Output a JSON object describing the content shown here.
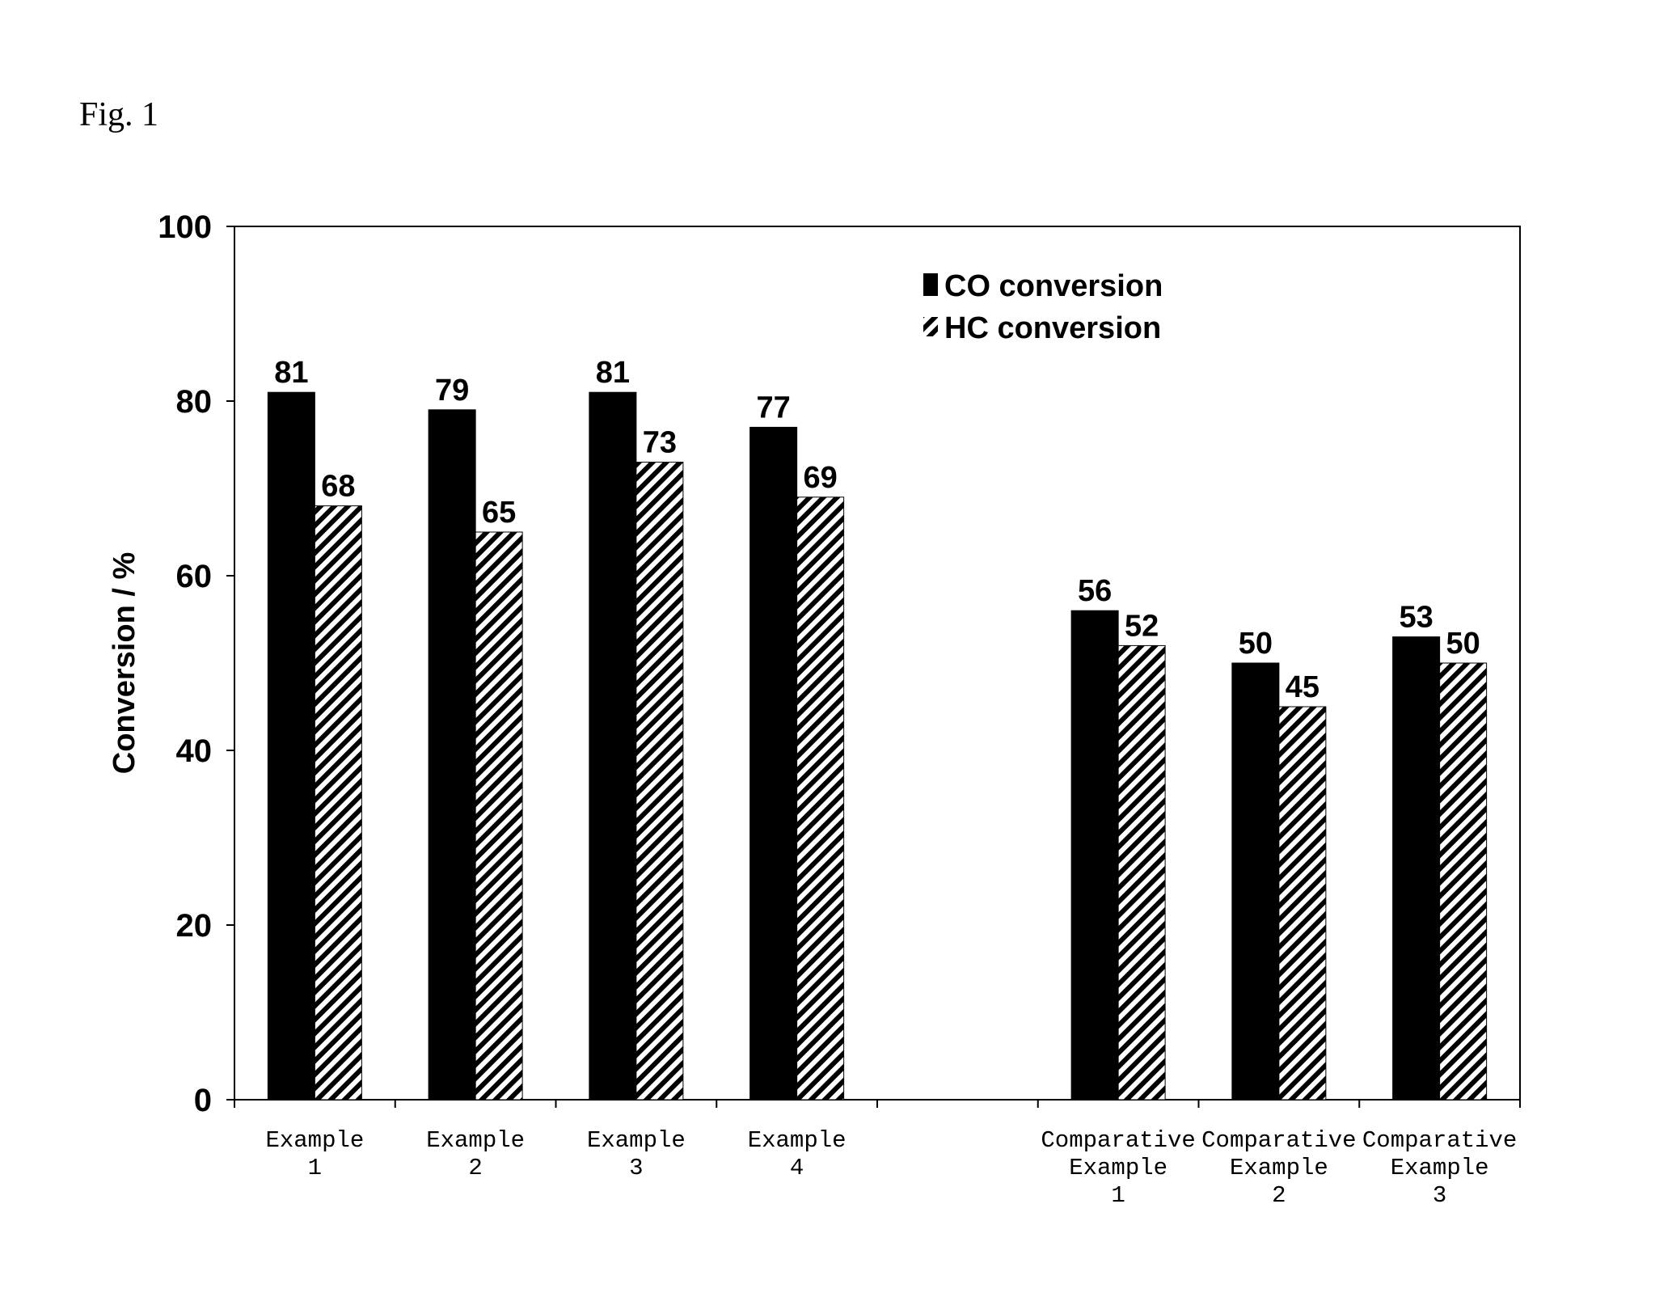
{
  "figure_label": "Fig. 1",
  "chart_data": {
    "type": "bar",
    "title": "",
    "xlabel": "",
    "ylabel": "Conversion / %",
    "ylim": [
      0,
      100
    ],
    "yticks": [
      0,
      20,
      40,
      60,
      80,
      100
    ],
    "grid": false,
    "legend_position": "top-center",
    "categories": [
      [
        "Example",
        "1"
      ],
      [
        "Example",
        "2"
      ],
      [
        "Example",
        "3"
      ],
      [
        "Example",
        "4"
      ],
      [],
      [
        "Comparative",
        "Example",
        "1"
      ],
      [
        "Comparative",
        "Example",
        "2"
      ],
      [
        "Comparative",
        "Example",
        "3"
      ]
    ],
    "series": [
      {
        "name": "CO conversion",
        "pattern": "solid",
        "color": "#000000",
        "values": [
          81,
          79,
          81,
          77,
          null,
          56,
          50,
          53
        ]
      },
      {
        "name": "HC conversion",
        "pattern": "diagonal-hatch",
        "color": "#000000",
        "values": [
          68,
          65,
          73,
          69,
          null,
          52,
          45,
          50
        ]
      }
    ]
  }
}
